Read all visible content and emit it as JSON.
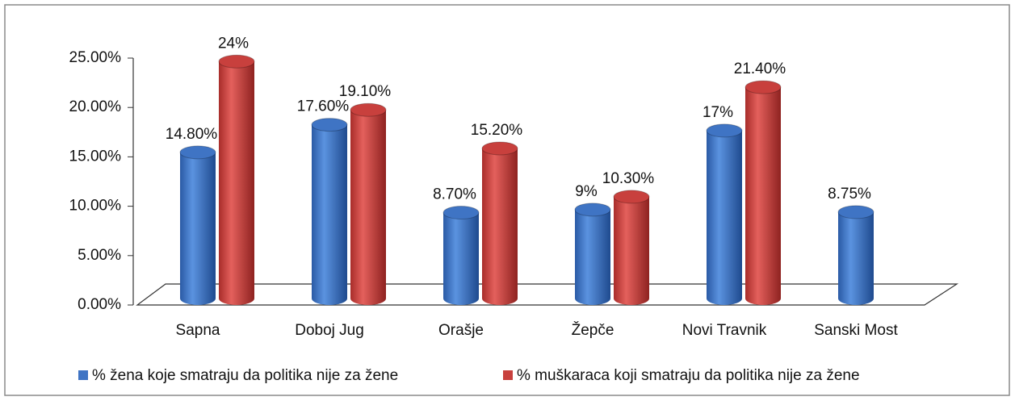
{
  "chart_data": {
    "type": "bar3d",
    "categories": [
      "Sapna",
      "Doboj Jug",
      "Orašje",
      "Žepče",
      "Novi Travnik",
      "Sanski Most"
    ],
    "series": [
      {
        "name": "% žena koje smatraju da politika nije za žene",
        "color": "#3f74c4",
        "values": [
          14.8,
          17.6,
          8.7,
          9,
          17,
          8.75
        ],
        "value_labels": [
          "14.80%",
          "17.60%",
          "8.70%",
          "9%",
          "17%",
          "8.75%"
        ]
      },
      {
        "name": "% muškaraca koji smatraju da politika nije za žene",
        "color": "#c8403d",
        "values": [
          24,
          19.1,
          15.2,
          10.3,
          21.4,
          null
        ],
        "value_labels": [
          "24%",
          "19.10%",
          "15.20%",
          "10.30%",
          "21.40%",
          null
        ]
      }
    ],
    "ylim": [
      0,
      25
    ],
    "yticks": [
      {
        "value": 0,
        "label": "0.00%"
      },
      {
        "value": 5,
        "label": "5.00%"
      },
      {
        "value": 10,
        "label": "10.00%"
      },
      {
        "value": 15,
        "label": "15.00%"
      },
      {
        "value": 20,
        "label": "20.00%"
      },
      {
        "value": 25,
        "label": "25.00%"
      }
    ],
    "legend": "bottom"
  }
}
